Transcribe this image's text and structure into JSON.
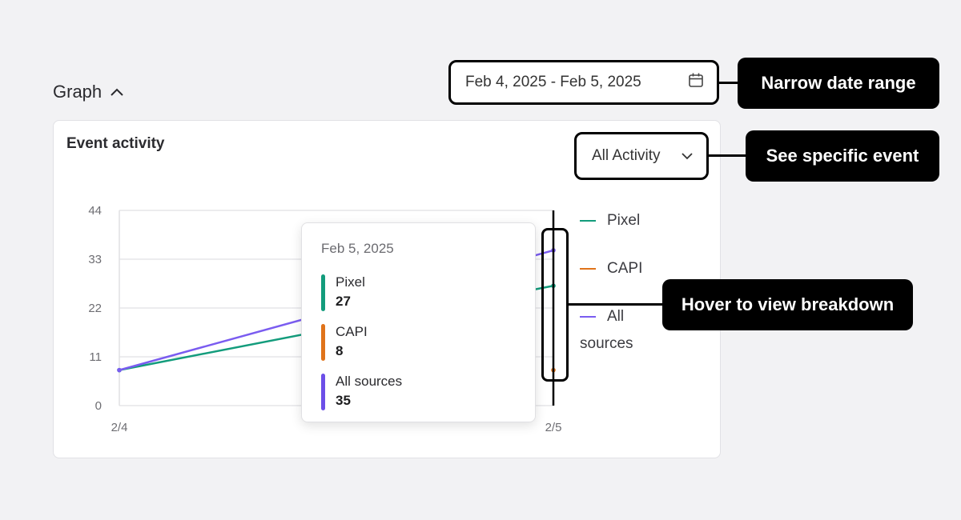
{
  "section": {
    "title": "Graph",
    "toggle_icon": "chevron-up-icon"
  },
  "date_range": {
    "value": "Feb 4, 2025 - Feb 5, 2025",
    "icon": "calendar-icon"
  },
  "card": {
    "title": "Event activity",
    "filter": {
      "selected": "All Activity",
      "icon": "chevron-down-icon"
    }
  },
  "chart_data": {
    "type": "line",
    "title": "Event activity",
    "x": [
      "2/4",
      "2/5"
    ],
    "ylim": [
      0,
      44
    ],
    "yticks": [
      "0",
      "11",
      "22",
      "33",
      "44"
    ],
    "grid": true,
    "legend_placement": "right",
    "series": [
      {
        "name": "Pixel",
        "color": "#139c7c",
        "values": [
          8,
          27
        ]
      },
      {
        "name": "CAPI",
        "color": "#e0731a",
        "values": [
          null,
          8
        ]
      },
      {
        "name": "All sources",
        "color": "#7a5cf0",
        "values": [
          8,
          35
        ]
      }
    ]
  },
  "legend": [
    {
      "label": "Pixel",
      "color": "#139c7c"
    },
    {
      "label": "CAPI",
      "color": "#e0731a"
    },
    {
      "label": "All sources",
      "color": "#7a5cf0"
    }
  ],
  "tooltip": {
    "date": "Feb 5, 2025",
    "rows": [
      {
        "label": "Pixel",
        "value": "27",
        "color": "#139c7c"
      },
      {
        "label": "CAPI",
        "value": "8",
        "color": "#e0731a"
      },
      {
        "label": "All sources",
        "value": "35",
        "color": "#6c4fe8"
      }
    ]
  },
  "callouts": {
    "date_range": "Narrow date range",
    "event": "See specific event",
    "hover": "Hover to view breakdown"
  }
}
